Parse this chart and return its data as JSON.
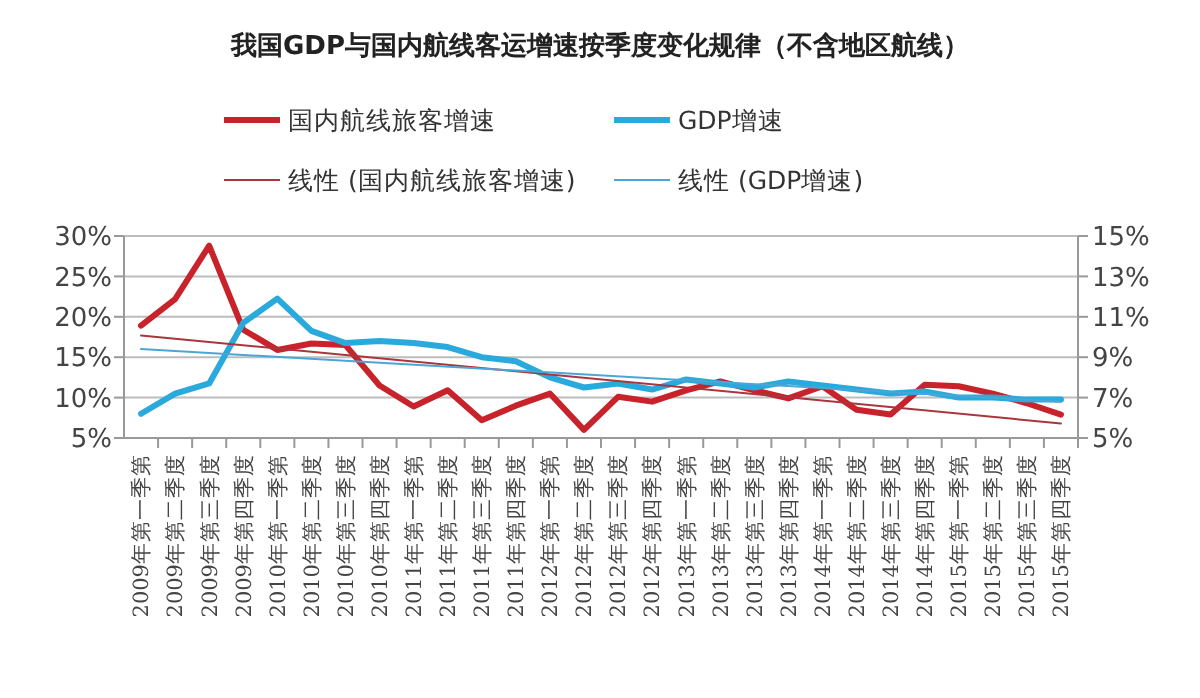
{
  "chart_data": {
    "type": "line",
    "title": "我国GDP与国内航线客运增速按季度变化规律（不含地区航线）",
    "categories": [
      "2009年第一季第",
      "2009年第二季度",
      "2009年第三季度",
      "2009年第四季度",
      "2010年第一季第",
      "2010年第二季度",
      "2010年第三季度",
      "2010年第四季度",
      "2011年第一季第",
      "2011年第二季度",
      "2011年第三季度",
      "2011年第四季度",
      "2012年第一季第",
      "2012年第二季度",
      "2012年第三季度",
      "2012年第四季度",
      "2013年第一季第",
      "2013年第二季度",
      "2013年第三季度",
      "2013年第四季度",
      "2014年第一季第",
      "2014年第二季度",
      "2014年第三季度",
      "2014年第四季度",
      "2015年第一季第",
      "2015年第二季度",
      "2015年第三季度",
      "2015年第四季度"
    ],
    "series": [
      {
        "name": "国内航线旅客增速",
        "color": "#c8232b",
        "values": [
          18.9,
          22.2,
          28.8,
          18.4,
          15.9,
          16.7,
          16.5,
          11.5,
          8.9,
          10.9,
          7.2,
          9.0,
          10.5,
          6.0,
          10.1,
          9.5,
          10.9,
          12.0,
          10.9,
          9.9,
          11.4,
          8.5,
          7.9,
          11.6,
          11.4,
          10.5,
          9.3,
          7.9
        ]
      },
      {
        "name": "GDP增速",
        "color": "#29a9dc",
        "axis": "y2",
        "values": [
          6.2,
          7.2,
          7.7,
          10.7,
          11.9,
          10.3,
          9.7,
          9.8,
          9.7,
          9.5,
          9.0,
          8.8,
          8.0,
          7.5,
          7.7,
          7.4,
          7.9,
          7.7,
          7.5,
          7.8,
          7.6,
          7.4,
          7.2,
          7.3,
          7.0,
          7.0,
          6.9,
          6.9
        ]
      },
      {
        "name": "线性 (国内航线旅客增速)",
        "color": "#a8363c",
        "x": [
          "2009年第一季第",
          "2015年第四季度"
        ],
        "values": [
          17.7,
          6.8
        ]
      },
      {
        "name": "线性 (GDP增速)",
        "color": "#4aa6d6",
        "axis": "y2",
        "x": [
          "2009年第一季第",
          "2015年第四季度"
        ],
        "values": [
          9.4,
          6.8
        ]
      }
    ],
    "ylim": [
      5,
      30
    ],
    "yticks": [
      {
        "value": 5,
        "label": "5%"
      },
      {
        "value": 10,
        "label": "10%"
      },
      {
        "value": 15,
        "label": "15%"
      },
      {
        "value": 20,
        "label": "20%"
      },
      {
        "value": 25,
        "label": "25%"
      },
      {
        "value": 30,
        "label": "30%"
      }
    ],
    "y2lim": [
      5,
      15
    ],
    "y2ticks": [
      {
        "value": 5,
        "label": "5%"
      },
      {
        "value": 7,
        "label": "7%"
      },
      {
        "value": 9,
        "label": "9%"
      },
      {
        "value": 11,
        "label": "11%"
      },
      {
        "value": 13,
        "label": "13%"
      },
      {
        "value": 15,
        "label": "15%"
      }
    ],
    "grid": "y",
    "legend": "top",
    "marker": "none",
    "line_style": "solid"
  }
}
